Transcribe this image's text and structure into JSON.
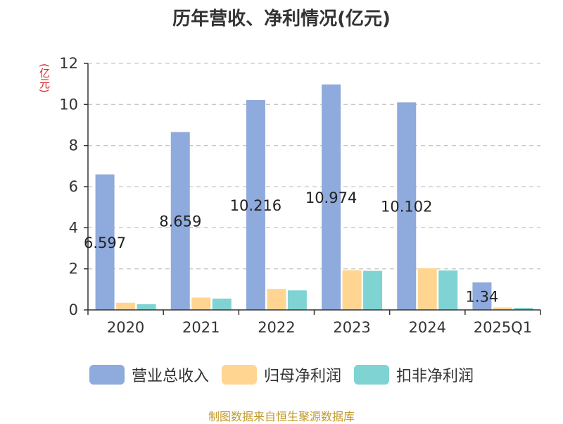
{
  "title": "历年营收、净利情况(亿元)",
  "unit": "(亿元)",
  "source": "制图数据来自恒生聚源数据库",
  "colors": {
    "revenue": "#8faadc",
    "net": "#ffd591",
    "deducted": "#7fd3d3"
  },
  "chart_data": {
    "type": "bar",
    "categories": [
      "2020",
      "2021",
      "2022",
      "2023",
      "2024",
      "2025Q1"
    ],
    "series": [
      {
        "name": "营业总收入",
        "values": [
          6.597,
          8.659,
          10.216,
          10.974,
          10.102,
          1.34
        ]
      },
      {
        "name": "归母净利润",
        "values": [
          0.35,
          0.6,
          1.02,
          1.93,
          2.03,
          0.12
        ]
      },
      {
        "name": "扣非净利润",
        "values": [
          0.28,
          0.55,
          0.95,
          1.9,
          1.92,
          0.1
        ]
      }
    ],
    "data_labels": [
      "6.597",
      "8.659",
      "10.216",
      "10.974",
      "10.102",
      "1.34"
    ],
    "ylim": [
      0,
      12
    ],
    "yticks": [
      "0",
      "2",
      "4",
      "6",
      "8",
      "10",
      "12"
    ],
    "grid": true,
    "legend": "bottom"
  }
}
